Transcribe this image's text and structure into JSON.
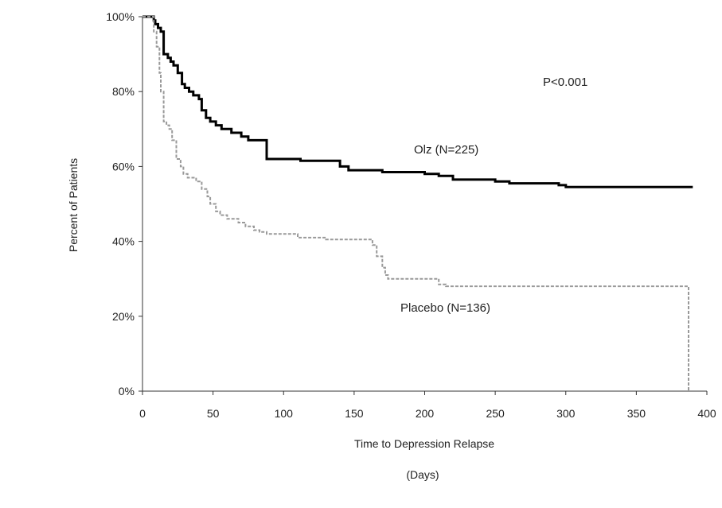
{
  "chart_data": {
    "type": "line",
    "step": true,
    "x_range": [
      0,
      400
    ],
    "y_range": [
      0,
      100
    ],
    "x_ticks": [
      0,
      50,
      100,
      150,
      200,
      250,
      300,
      350,
      400
    ],
    "y_ticks": [
      "0%",
      "20%",
      "40%",
      "60%",
      "80%",
      "100%"
    ],
    "y_tick_values": [
      0,
      20,
      40,
      60,
      80,
      100
    ],
    "grid": false,
    "xlabel": "Time to Depression Relapse",
    "xlabel_unit": "(Days)",
    "ylabel": "Percent of Patients",
    "annotation": "P<0.001",
    "series": [
      {
        "name": "Olz (N=225)",
        "color": "#000000",
        "style": "solid",
        "points": [
          [
            0,
            100
          ],
          [
            7,
            100
          ],
          [
            8,
            99
          ],
          [
            9,
            98
          ],
          [
            11,
            97
          ],
          [
            13,
            96
          ],
          [
            15,
            90
          ],
          [
            18,
            89
          ],
          [
            20,
            88
          ],
          [
            22,
            87
          ],
          [
            25,
            85
          ],
          [
            28,
            82
          ],
          [
            30,
            81
          ],
          [
            33,
            80
          ],
          [
            36,
            79
          ],
          [
            40,
            78
          ],
          [
            42,
            75
          ],
          [
            45,
            73
          ],
          [
            48,
            72
          ],
          [
            52,
            71
          ],
          [
            56,
            70
          ],
          [
            63,
            69
          ],
          [
            70,
            68
          ],
          [
            75,
            67
          ],
          [
            88,
            62
          ],
          [
            100,
            62
          ],
          [
            112,
            61.5
          ],
          [
            140,
            60
          ],
          [
            146,
            59
          ],
          [
            170,
            58.5
          ],
          [
            200,
            58
          ],
          [
            210,
            57.5
          ],
          [
            220,
            56.5
          ],
          [
            250,
            56
          ],
          [
            260,
            55.5
          ],
          [
            295,
            55
          ],
          [
            300,
            54.5
          ],
          [
            390,
            54.5
          ]
        ]
      },
      {
        "name": "Placebo (N=136)",
        "color": "#999999",
        "style": "dashed",
        "points": [
          [
            0,
            100
          ],
          [
            7,
            100
          ],
          [
            8,
            96
          ],
          [
            10,
            92
          ],
          [
            12,
            85
          ],
          [
            13,
            80
          ],
          [
            15,
            72
          ],
          [
            17,
            71
          ],
          [
            19,
            70
          ],
          [
            21,
            67
          ],
          [
            24,
            62
          ],
          [
            27,
            60
          ],
          [
            29,
            58
          ],
          [
            32,
            57
          ],
          [
            38,
            56
          ],
          [
            42,
            54
          ],
          [
            46,
            52
          ],
          [
            48,
            50
          ],
          [
            52,
            48
          ],
          [
            55,
            47
          ],
          [
            60,
            46
          ],
          [
            68,
            45
          ],
          [
            73,
            44
          ],
          [
            79,
            43
          ],
          [
            83,
            42.5
          ],
          [
            88,
            42
          ],
          [
            110,
            41
          ],
          [
            130,
            40.5
          ],
          [
            155,
            40.5
          ],
          [
            163,
            39
          ],
          [
            166,
            36
          ],
          [
            170,
            33
          ],
          [
            172,
            31
          ],
          [
            174,
            30
          ],
          [
            210,
            28.5
          ],
          [
            215,
            28
          ],
          [
            386,
            28
          ],
          [
            387,
            0
          ]
        ]
      }
    ]
  }
}
